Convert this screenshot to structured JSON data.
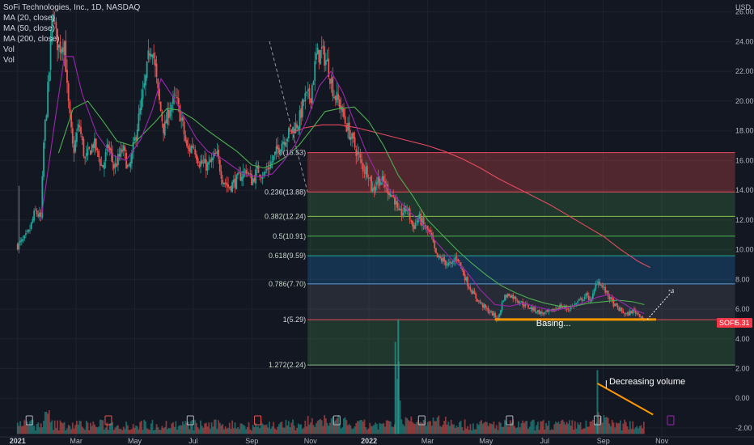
{
  "legend": {
    "title": "SoFi Technologies, Inc., 1D, NASDAQ",
    "ma20": "MA (20, close)",
    "ma50": "MA (50, close)",
    "ma200": "MA (200, close)",
    "vol1": "Vol",
    "vol2": "Vol"
  },
  "currency": "USD",
  "price_badge": {
    "ticker": "SOFI",
    "value": "5.31",
    "color": "#f23645"
  },
  "colors": {
    "up": "#26a69a",
    "down": "#ef5350",
    "ma20": "#9c27b0",
    "ma50": "#4caf50",
    "ma200": "#e84a5f",
    "annotation": "#ff9800"
  },
  "annotations": {
    "basing": "Basing...",
    "volume": "Decreasing volume"
  },
  "chart_data": {
    "type": "candlestick",
    "symbol": "SOFI",
    "exchange": "NASDAQ",
    "interval": "1D",
    "y_ticks": [
      "26.00",
      "24.00",
      "22.00",
      "20.00",
      "18.00",
      "16.00",
      "14.00",
      "12.00",
      "10.00",
      "8.00",
      "6.00",
      "4.00",
      "2.00",
      "0.00",
      "-2.00"
    ],
    "y_values": [
      26,
      24,
      22,
      20,
      18,
      16,
      14,
      12,
      10,
      8,
      6,
      4,
      2,
      0,
      -2
    ],
    "x_ticks": [
      {
        "label": "2021",
        "bold": true
      },
      {
        "label": "Mar"
      },
      {
        "label": "May"
      },
      {
        "label": "Jul"
      },
      {
        "label": "Sep"
      },
      {
        "label": "Nov"
      },
      {
        "label": "2022",
        "bold": true
      },
      {
        "label": "Mar"
      },
      {
        "label": "May"
      },
      {
        "label": "Jul"
      },
      {
        "label": "Sep"
      },
      {
        "label": "Nov"
      }
    ],
    "x_tick_months": [
      0,
      2,
      4,
      6,
      8,
      10,
      12,
      14,
      16,
      18,
      20,
      22
    ],
    "price_path": [
      [
        0,
        10.3
      ],
      [
        0.2,
        10.6
      ],
      [
        0.4,
        11.2
      ],
      [
        0.6,
        12.6
      ],
      [
        0.8,
        12.1
      ],
      [
        0.9,
        17.5
      ],
      [
        1.0,
        19.8
      ],
      [
        1.1,
        22.5
      ],
      [
        1.2,
        26.4
      ],
      [
        1.3,
        24.5
      ],
      [
        1.4,
        23.6
      ],
      [
        1.6,
        24.0
      ],
      [
        1.7,
        20.5
      ],
      [
        1.9,
        16.5
      ],
      [
        2.1,
        18.5
      ],
      [
        2.3,
        16.0
      ],
      [
        2.6,
        17.2
      ],
      [
        2.9,
        15.5
      ],
      [
        3.1,
        17.0
      ],
      [
        3.3,
        15.5
      ],
      [
        3.6,
        16.8
      ],
      [
        3.8,
        15.2
      ],
      [
        4.0,
        17.4
      ],
      [
        4.2,
        19.5
      ],
      [
        4.4,
        21.8
      ],
      [
        4.5,
        23.4
      ],
      [
        4.6,
        23.8
      ],
      [
        4.8,
        20.4
      ],
      [
        5.0,
        18.0
      ],
      [
        5.2,
        19.6
      ],
      [
        5.4,
        20.2
      ],
      [
        5.6,
        18.7
      ],
      [
        5.8,
        16.6
      ],
      [
        6.0,
        17.1
      ],
      [
        6.2,
        15.9
      ],
      [
        6.5,
        15.6
      ],
      [
        6.8,
        16.4
      ],
      [
        7.0,
        14.8
      ],
      [
        7.2,
        14.2
      ],
      [
        7.5,
        14.7
      ],
      [
        7.8,
        15.4
      ],
      [
        8.0,
        14.6
      ],
      [
        8.2,
        15.4
      ],
      [
        8.4,
        15.0
      ],
      [
        8.7,
        16.0
      ],
      [
        9.0,
        17.2
      ],
      [
        9.3,
        17.9
      ],
      [
        9.6,
        18.6
      ],
      [
        9.8,
        20.2
      ],
      [
        10.0,
        20.3
      ],
      [
        10.2,
        23.0
      ],
      [
        10.4,
        23.3
      ],
      [
        10.6,
        22.4
      ],
      [
        10.8,
        20.5
      ],
      [
        11.0,
        19.8
      ],
      [
        11.2,
        18.5
      ],
      [
        11.4,
        17.5
      ],
      [
        11.6,
        16.5
      ],
      [
        11.8,
        15.5
      ],
      [
        12.0,
        15.2
      ],
      [
        12.1,
        13.9
      ],
      [
        12.3,
        14.8
      ],
      [
        12.5,
        14.5
      ],
      [
        12.7,
        13.9
      ],
      [
        12.9,
        13.3
      ],
      [
        13.0,
        12.3
      ],
      [
        13.3,
        12.8
      ],
      [
        13.5,
        11.5
      ],
      [
        13.7,
        12.2
      ],
      [
        13.9,
        11.5
      ],
      [
        14.1,
        11.0
      ],
      [
        14.3,
        9.5
      ],
      [
        14.5,
        9.3
      ],
      [
        14.8,
        8.9
      ],
      [
        15.0,
        9.6
      ],
      [
        15.2,
        8.5
      ],
      [
        15.4,
        7.6
      ],
      [
        15.6,
        6.9
      ],
      [
        15.8,
        6.4
      ],
      [
        16.0,
        6.0
      ],
      [
        16.2,
        5.7
      ],
      [
        16.4,
        5.3
      ],
      [
        16.6,
        6.8
      ],
      [
        16.8,
        7.0
      ],
      [
        17.0,
        6.7
      ],
      [
        17.3,
        6.3
      ],
      [
        17.6,
        6.0
      ],
      [
        17.9,
        5.7
      ],
      [
        18.2,
        5.8
      ],
      [
        18.5,
        6.2
      ],
      [
        18.8,
        6.0
      ],
      [
        19.1,
        6.4
      ],
      [
        19.4,
        6.9
      ],
      [
        19.6,
        6.6
      ],
      [
        19.8,
        8.0
      ],
      [
        20.0,
        7.4
      ],
      [
        20.2,
        6.8
      ],
      [
        20.4,
        6.2
      ],
      [
        20.6,
        5.9
      ],
      [
        20.8,
        5.6
      ],
      [
        21.0,
        5.9
      ],
      [
        21.2,
        5.7
      ],
      [
        21.4,
        5.31
      ]
    ],
    "ma20_path": [
      [
        0.8,
        12.0
      ],
      [
        1.3,
        19.0
      ],
      [
        1.6,
        23.0
      ],
      [
        1.9,
        23.0
      ],
      [
        2.2,
        20.5
      ],
      [
        2.7,
        17.8
      ],
      [
        3.2,
        16.4
      ],
      [
        3.7,
        16.0
      ],
      [
        4.2,
        17.4
      ],
      [
        4.6,
        19.4
      ],
      [
        4.9,
        21.5
      ],
      [
        5.3,
        20.3
      ],
      [
        5.7,
        18.9
      ],
      [
        6.1,
        17.5
      ],
      [
        6.5,
        16.6
      ],
      [
        7.0,
        16.1
      ],
      [
        7.5,
        15.4
      ],
      [
        7.8,
        15.0
      ],
      [
        8.3,
        14.9
      ],
      [
        8.7,
        15.1
      ],
      [
        9.1,
        16.0
      ],
      [
        9.5,
        17.1
      ],
      [
        9.9,
        18.8
      ],
      [
        10.3,
        21.0
      ],
      [
        10.7,
        22.0
      ],
      [
        11.1,
        20.6
      ],
      [
        11.5,
        18.6
      ],
      [
        11.9,
        16.6
      ],
      [
        12.3,
        15.0
      ],
      [
        12.8,
        13.8
      ],
      [
        13.3,
        12.7
      ],
      [
        13.8,
        11.8
      ],
      [
        14.3,
        10.5
      ],
      [
        14.8,
        9.4
      ],
      [
        15.3,
        8.6
      ],
      [
        15.8,
        7.3
      ],
      [
        16.3,
        6.3
      ],
      [
        16.8,
        6.2
      ],
      [
        17.3,
        6.4
      ],
      [
        17.8,
        6.1
      ],
      [
        18.3,
        5.9
      ],
      [
        18.8,
        6.1
      ],
      [
        19.3,
        6.4
      ],
      [
        19.8,
        6.8
      ],
      [
        20.2,
        7.0
      ],
      [
        20.6,
        6.5
      ],
      [
        21.0,
        6.0
      ],
      [
        21.4,
        5.7
      ]
    ],
    "ma50_path": [
      [
        1.4,
        16.5
      ],
      [
        1.9,
        19.5
      ],
      [
        2.4,
        20.0
      ],
      [
        2.9,
        18.7
      ],
      [
        3.4,
        17.3
      ],
      [
        3.9,
        17.0
      ],
      [
        4.3,
        17.8
      ],
      [
        4.7,
        18.6
      ],
      [
        5.1,
        19.5
      ],
      [
        5.5,
        19.4
      ],
      [
        6.0,
        18.8
      ],
      [
        6.5,
        18.0
      ],
      [
        7.0,
        17.3
      ],
      [
        7.5,
        16.6
      ],
      [
        8.0,
        15.7
      ],
      [
        8.4,
        15.5
      ],
      [
        8.8,
        15.8
      ],
      [
        9.2,
        16.3
      ],
      [
        9.6,
        17.0
      ],
      [
        10.0,
        18.0
      ],
      [
        10.5,
        19.3
      ],
      [
        11.0,
        19.5
      ],
      [
        11.5,
        19.6
      ],
      [
        12.0,
        18.6
      ],
      [
        12.5,
        17.0
      ],
      [
        13.0,
        15.0
      ],
      [
        13.5,
        13.6
      ],
      [
        14.0,
        12.0
      ],
      [
        14.5,
        11.0
      ],
      [
        15.0,
        10.0
      ],
      [
        15.5,
        9.1
      ],
      [
        16.0,
        8.3
      ],
      [
        16.5,
        7.6
      ],
      [
        17.0,
        7.1
      ],
      [
        17.5,
        6.7
      ],
      [
        18.0,
        6.4
      ],
      [
        18.5,
        6.2
      ],
      [
        19.0,
        6.2
      ],
      [
        19.5,
        6.4
      ],
      [
        20.0,
        6.5
      ],
      [
        20.5,
        6.6
      ],
      [
        21.0,
        6.5
      ],
      [
        21.4,
        6.3
      ]
    ],
    "ma200_path": [
      [
        9.3,
        17.8
      ],
      [
        9.8,
        18.2
      ],
      [
        10.4,
        18.4
      ],
      [
        11.0,
        18.4
      ],
      [
        11.6,
        18.2
      ],
      [
        12.2,
        17.9
      ],
      [
        12.8,
        17.6
      ],
      [
        13.4,
        17.3
      ],
      [
        14.0,
        17.0
      ],
      [
        14.6,
        16.6
      ],
      [
        15.2,
        16.1
      ],
      [
        15.8,
        15.5
      ],
      [
        16.4,
        14.8
      ],
      [
        17.0,
        14.2
      ],
      [
        17.6,
        13.6
      ],
      [
        18.2,
        13.0
      ],
      [
        18.8,
        12.3
      ],
      [
        19.4,
        11.6
      ],
      [
        20.0,
        10.9
      ],
      [
        20.6,
        10.0
      ],
      [
        21.2,
        9.2
      ],
      [
        21.6,
        8.8
      ]
    ],
    "fibonacci": {
      "start_month": 9.9,
      "end_month": 24.5,
      "levels": [
        {
          "label": "0(16.53)",
          "price": 16.53
        },
        {
          "label": "0.236(13.88)",
          "price": 13.88
        },
        {
          "label": "0.382(12.24)",
          "price": 12.24
        },
        {
          "label": "0.5(10.91)",
          "price": 10.91
        },
        {
          "label": "0.618(9.59)",
          "price": 9.59
        },
        {
          "label": "0.786(7.70)",
          "price": 7.7
        },
        {
          "label": "1(5.29)",
          "price": 5.29
        },
        {
          "label": "1.272(2.24)",
          "price": 2.24
        }
      ]
    },
    "support_line": {
      "from_month": 16.3,
      "to_month": 21.8,
      "price": 5.3
    },
    "volume": {
      "spike_2022": [
        13.0,
        14.0
      ],
      "decreasing_trend": [
        [
          19.8,
          1.0
        ],
        [
          21.7,
          -1.1
        ]
      ]
    },
    "ylim": [
      -2.6,
      26.8
    ],
    "xlim_months": [
      -0.6,
      24.4
    ]
  }
}
